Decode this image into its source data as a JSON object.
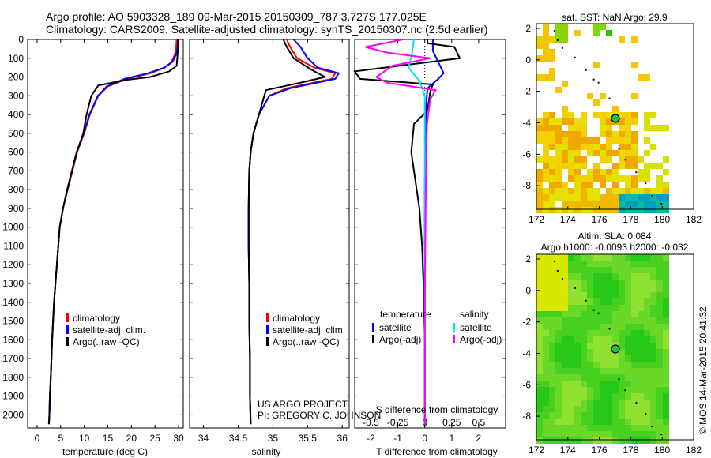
{
  "header": {
    "line1": "Argo profile: AO 5903328_189 09-Mar-2015 20150309_787 3.727S 177.025E",
    "line2": "Climatology: CARS2009. Satellite-adjusted climatology: synTS_20150307.nc (2.5d earlier)"
  },
  "colors": {
    "climatology": "#ff0000",
    "satellite": "#0000ff",
    "argo": "#000000",
    "satellite_salinity": "#00e5ff",
    "argo_salinity": "#ff00ff"
  },
  "legends": {
    "temp_panel": [
      "climatology",
      "satellite-adj. clim.",
      "Argo(..raw -QC)"
    ],
    "sal_panel": [
      "climatology",
      "satellite-adj. clim.",
      "Argo(..raw -QC)"
    ],
    "diff_panel": {
      "temperature_header": "temperature",
      "salinity_header": "salinity",
      "temp_items": [
        "satellite",
        "Argo(-adj)"
      ],
      "sal_items": [
        "satellite",
        "Argo(-adj)"
      ]
    }
  },
  "project_credit": {
    "line1": "US ARGO PROJECT",
    "line2": "PI: GREGORY C. JOHNSON"
  },
  "maps": {
    "sst_title": "sat. SST: NaN Argo: 29.9",
    "sla_title1": "Altim. SLA: 0.084",
    "sla_title2": "Argo h1000: -0.0093 h2000: -0.032",
    "y_ticks": [
      "2",
      "0",
      "-2",
      "-4",
      "-6",
      "-8"
    ],
    "x_ticks": [
      "172",
      "174",
      "176",
      "178",
      "180",
      "182"
    ],
    "float_position": {
      "lon": 177.025,
      "lat": -3.727
    }
  },
  "credit_vertical": "©IMOS 14-Mar-2015 20:41:32",
  "chart_data": [
    {
      "type": "line",
      "name": "temperature profile",
      "xlabel": "temperature (deg C)",
      "ylabel": "",
      "xlim": [
        -2,
        31
      ],
      "ylim": [
        0,
        2070
      ],
      "y_inverted": true,
      "xticks": [
        0,
        5,
        10,
        15,
        20,
        25,
        30
      ],
      "yticks": [
        0,
        100,
        200,
        300,
        400,
        500,
        600,
        700,
        800,
        900,
        1000,
        1100,
        1200,
        1300,
        1400,
        1500,
        1600,
        1700,
        1800,
        1900,
        2000
      ],
      "series": [
        {
          "name": "climatology",
          "color": "#ff0000",
          "x": [
            29.6,
            29.5,
            29.2,
            28.5,
            27.0,
            24.0,
            19.0,
            15.0,
            13.0,
            11.2,
            10.0,
            8.5,
            7.5,
            6.5,
            5.5,
            4.8,
            4.2,
            3.6,
            3.2,
            2.9,
            2.7,
            2.6,
            2.5
          ],
          "y": [
            0,
            40,
            80,
            120,
            150,
            180,
            210,
            250,
            300,
            400,
            500,
            600,
            700,
            800,
            900,
            1000,
            1200,
            1400,
            1600,
            1800,
            1900,
            2000,
            2050
          ]
        },
        {
          "name": "satellite-adj. clim.",
          "color": "#0000ff",
          "x": [
            29.9,
            29.8,
            29.5,
            28.7,
            27.0,
            23.5,
            18.5,
            14.8,
            12.9,
            11.1,
            9.9,
            8.4,
            7.4,
            6.4,
            5.5,
            4.8,
            4.2,
            3.6,
            3.2,
            2.9,
            2.7,
            2.6,
            2.5
          ],
          "y": [
            0,
            40,
            80,
            120,
            150,
            180,
            210,
            250,
            300,
            400,
            500,
            600,
            700,
            800,
            900,
            1000,
            1200,
            1400,
            1600,
            1800,
            1900,
            2000,
            2050
          ]
        },
        {
          "name": "Argo(..raw -QC)",
          "color": "#000000",
          "x": [
            29.9,
            29.9,
            29.8,
            29.6,
            28.0,
            24.0,
            19.0,
            13.0,
            11.5,
            10.5,
            9.8,
            8.4,
            7.4,
            6.4,
            5.5,
            4.8,
            4.2,
            3.6,
            3.2,
            2.9,
            2.7,
            2.6,
            2.5
          ],
          "y": [
            0,
            40,
            80,
            140,
            170,
            200,
            215,
            245,
            300,
            400,
            500,
            600,
            700,
            800,
            900,
            1000,
            1200,
            1400,
            1600,
            1800,
            1900,
            2000,
            2050
          ]
        }
      ]
    },
    {
      "type": "line",
      "name": "salinity profile",
      "xlabel": "salinity",
      "xlim": [
        33.8,
        36.1
      ],
      "ylim": [
        0,
        2070
      ],
      "y_inverted": true,
      "xticks": [
        34,
        34.5,
        35,
        35.5,
        36
      ],
      "xtick_labels": [
        "34",
        "34.5",
        "35",
        "35.5",
        "36"
      ],
      "series": [
        {
          "name": "climatology",
          "color": "#ff0000",
          "x": [
            35.2,
            35.25,
            35.35,
            35.6,
            35.9,
            35.85,
            35.2,
            34.95,
            34.8,
            34.72,
            34.68,
            34.66,
            34.65,
            34.65,
            34.66,
            34.66,
            34.67,
            34.67,
            34.68
          ],
          "y": [
            0,
            40,
            100,
            150,
            180,
            210,
            260,
            300,
            400,
            500,
            600,
            700,
            900,
            1100,
            1300,
            1500,
            1700,
            1900,
            2050
          ]
        },
        {
          "name": "satellite-adj. clim.",
          "color": "#0000ff",
          "x": [
            35.3,
            35.4,
            35.5,
            35.65,
            35.95,
            35.9,
            35.25,
            34.95,
            34.8,
            34.72,
            34.68,
            34.66,
            34.65,
            34.65,
            34.66,
            34.66,
            34.67,
            34.67,
            34.68
          ],
          "y": [
            0,
            40,
            100,
            150,
            180,
            210,
            260,
            300,
            400,
            500,
            600,
            700,
            900,
            1100,
            1300,
            1500,
            1700,
            1900,
            2050
          ]
        },
        {
          "name": "Argo(..raw -QC)",
          "color": "#000000",
          "x": [
            35.15,
            35.2,
            35.3,
            35.55,
            35.75,
            35.4,
            34.9,
            34.8,
            34.72,
            34.68,
            34.66,
            34.65,
            34.65,
            34.66,
            34.66,
            34.67,
            34.67,
            34.68
          ],
          "y": [
            0,
            40,
            100,
            160,
            200,
            230,
            270,
            400,
            500,
            600,
            700,
            900,
            1100,
            1300,
            1500,
            1700,
            1900,
            2050
          ]
        }
      ]
    },
    {
      "type": "line",
      "name": "difference from climatology",
      "xlabel": "T difference from climatology",
      "xlabel_top": "S difference from climatology",
      "xlim": [
        -2.6,
        3.0
      ],
      "ylim": [
        0,
        2070
      ],
      "y_inverted": true,
      "xticks": [
        -2,
        -1,
        0,
        1,
        2
      ],
      "xtick_labels": [
        "-2",
        "-1",
        "0",
        "1",
        "2"
      ],
      "sticks": [
        -0.5,
        -0.25,
        0,
        0.25,
        0.5
      ],
      "stick_labels": [
        "-0.5",
        "-0.25",
        "0",
        "0.25",
        "0.5"
      ],
      "s_scale": 4,
      "series": [
        {
          "name": "temperature satellite",
          "axis": "T",
          "color": "#0000ff",
          "x": [
            0.3,
            0.3,
            0.5,
            0.7,
            0.5,
            0.1,
            0.05,
            0.02,
            0.0,
            0.0,
            0.0,
            0.0
          ],
          "y": [
            0,
            60,
            120,
            180,
            210,
            260,
            350,
            500,
            800,
            1200,
            1600,
            2050
          ]
        },
        {
          "name": "temperature Argo(-adj)",
          "axis": "T",
          "color": "#000000",
          "x": [
            0.1,
            0.1,
            1.1,
            1.3,
            -2.6,
            -2.4,
            0.3,
            0.2,
            0.1,
            -0.4,
            -0.5,
            -0.4,
            -0.2,
            -0.1,
            -0.05,
            0.0,
            0.0
          ],
          "y": [
            0,
            20,
            40,
            100,
            170,
            210,
            240,
            280,
            380,
            450,
            600,
            700,
            900,
            1100,
            1300,
            1600,
            2050
          ]
        },
        {
          "name": "salinity satellite",
          "axis": "S",
          "color": "#00e5ff",
          "x": [
            -0.1,
            -0.12,
            -0.15,
            -0.05,
            0.0,
            0.0,
            0.0,
            0.0,
            0.0,
            0.0
          ],
          "y": [
            0,
            80,
            150,
            220,
            300,
            400,
            700,
            1100,
            1600,
            2050
          ]
        },
        {
          "name": "salinity Argo(-adj)",
          "axis": "S",
          "color": "#ff00ff",
          "x": [
            -0.2,
            -0.55,
            -0.35,
            0.05,
            -0.3,
            -0.45,
            -0.35,
            0.1,
            0.05,
            0.02,
            0.01,
            0.0,
            0.0
          ],
          "y": [
            0,
            40,
            70,
            100,
            140,
            200,
            230,
            270,
            320,
            450,
            800,
            1400,
            2050
          ]
        }
      ]
    },
    {
      "type": "heatmap",
      "name": "satellite SST map",
      "title": "sat. SST: NaN Argo: 29.9",
      "xlim": [
        172,
        182
      ],
      "ylim": [
        -9.5,
        2.3
      ],
      "xticks": [
        172,
        174,
        176,
        178,
        180,
        182
      ],
      "yticks": [
        2,
        0,
        -2,
        -4,
        -6,
        -8
      ],
      "marker": {
        "lon": 177.025,
        "lat": -3.727
      }
    },
    {
      "type": "heatmap",
      "name": "altimetry SLA map",
      "title": "Altim. SLA: 0.084",
      "subtitle": "Argo h1000: -0.0093 h2000: -0.032",
      "xlim": [
        172,
        182
      ],
      "ylim": [
        -9.5,
        2.3
      ],
      "xticks": [
        172,
        174,
        176,
        178,
        180,
        182
      ],
      "yticks": [
        2,
        0,
        -2,
        -4,
        -6,
        -8
      ],
      "marker": {
        "lon": 177.025,
        "lat": -3.727
      }
    }
  ]
}
